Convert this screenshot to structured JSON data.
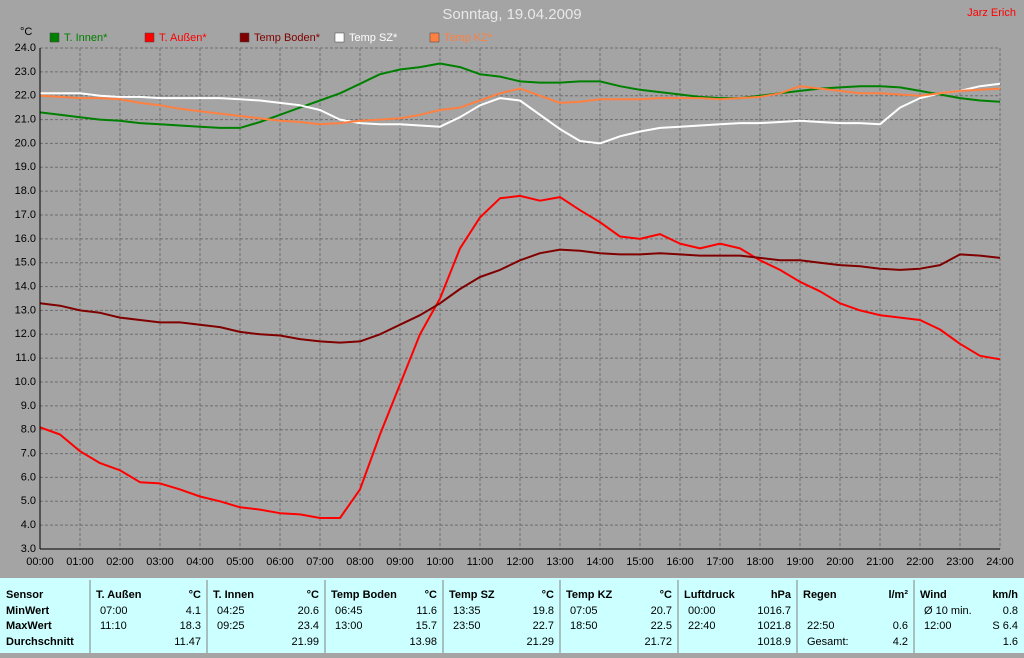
{
  "chart_data": {
    "type": "line",
    "title": "Sonntag, 19.04.2009",
    "author": "Jarz Erich",
    "y_label": "°C",
    "x": [
      0,
      0.5,
      1,
      1.5,
      2,
      2.5,
      3,
      3.5,
      4,
      4.5,
      5,
      5.5,
      6,
      6.5,
      7,
      7.5,
      8,
      8.5,
      9,
      9.5,
      10,
      10.5,
      11,
      11.5,
      12,
      12.5,
      13,
      13.5,
      14,
      14.5,
      15,
      15.5,
      16,
      16.5,
      17,
      17.5,
      18,
      18.5,
      19,
      19.5,
      20,
      20.5,
      21,
      21.5,
      22,
      22.5,
      23,
      23.5,
      24
    ],
    "series": [
      {
        "name": "T. Innen*",
        "color": "#008000",
        "values": [
          21.3,
          21.2,
          21.1,
          21.0,
          20.95,
          20.85,
          20.8,
          20.75,
          20.7,
          20.65,
          20.65,
          20.9,
          21.2,
          21.5,
          21.8,
          22.1,
          22.5,
          22.9,
          23.1,
          23.2,
          23.35,
          23.2,
          22.9,
          22.8,
          22.6,
          22.55,
          22.55,
          22.6,
          22.6,
          22.4,
          22.25,
          22.15,
          22.05,
          21.95,
          21.9,
          21.9,
          22.0,
          22.1,
          22.2,
          22.3,
          22.35,
          22.4,
          22.4,
          22.35,
          22.2,
          22.05,
          21.9,
          21.8,
          21.75
        ]
      },
      {
        "name": "T. Außen*",
        "color": "#ff0000",
        "values": [
          8.1,
          7.8,
          7.1,
          6.6,
          6.3,
          5.8,
          5.75,
          5.5,
          5.2,
          5.0,
          4.75,
          4.65,
          4.5,
          4.45,
          4.3,
          4.3,
          5.5,
          7.8,
          9.9,
          12.0,
          13.5,
          15.6,
          16.9,
          17.7,
          17.8,
          17.6,
          17.75,
          17.2,
          16.7,
          16.1,
          16.0,
          16.2,
          15.8,
          15.6,
          15.8,
          15.6,
          15.1,
          14.7,
          14.2,
          13.8,
          13.3,
          13.0,
          12.8,
          12.7,
          12.6,
          12.2,
          11.6,
          11.1,
          10.95
        ]
      },
      {
        "name": "Temp Boden*",
        "color": "#800000",
        "values": [
          13.3,
          13.2,
          13.0,
          12.9,
          12.7,
          12.6,
          12.5,
          12.5,
          12.4,
          12.3,
          12.1,
          12.0,
          11.95,
          11.8,
          11.7,
          11.65,
          11.7,
          12.0,
          12.4,
          12.8,
          13.3,
          13.9,
          14.4,
          14.7,
          15.1,
          15.4,
          15.55,
          15.5,
          15.4,
          15.35,
          15.35,
          15.4,
          15.35,
          15.3,
          15.3,
          15.3,
          15.2,
          15.1,
          15.1,
          15.0,
          14.9,
          14.85,
          14.75,
          14.7,
          14.75,
          14.9,
          15.35,
          15.3,
          15.2
        ]
      },
      {
        "name": "Temp SZ*",
        "color": "#ffffff",
        "values": [
          22.1,
          22.1,
          22.1,
          22.0,
          21.95,
          21.95,
          21.9,
          21.9,
          21.9,
          21.9,
          21.85,
          21.8,
          21.7,
          21.6,
          21.4,
          21.0,
          20.85,
          20.8,
          20.8,
          20.75,
          20.7,
          21.1,
          21.6,
          21.9,
          21.8,
          21.2,
          20.6,
          20.1,
          20.0,
          20.3,
          20.5,
          20.65,
          20.7,
          20.75,
          20.8,
          20.85,
          20.85,
          20.9,
          20.95,
          20.9,
          20.85,
          20.85,
          20.8,
          21.5,
          21.9,
          22.1,
          22.2,
          22.4,
          22.5
        ]
      },
      {
        "name": "Temp KZ*",
        "color": "#ff8040",
        "values": [
          22.0,
          21.95,
          21.9,
          21.9,
          21.85,
          21.7,
          21.6,
          21.45,
          21.35,
          21.25,
          21.15,
          21.05,
          20.95,
          20.9,
          20.8,
          20.85,
          20.95,
          21.0,
          21.05,
          21.2,
          21.4,
          21.5,
          21.8,
          22.1,
          22.3,
          22.0,
          21.7,
          21.75,
          21.85,
          21.85,
          21.85,
          21.9,
          21.9,
          21.9,
          21.85,
          21.9,
          21.95,
          22.1,
          22.4,
          22.3,
          22.2,
          22.1,
          22.1,
          22.05,
          22.0,
          22.1,
          22.2,
          22.25,
          22.3
        ]
      }
    ],
    "xlim": [
      0,
      24
    ],
    "xticks": [
      {
        "value": 0,
        "label": "00:00"
      },
      {
        "value": 1,
        "label": "01:00"
      },
      {
        "value": 2,
        "label": "02:00"
      },
      {
        "value": 3,
        "label": "03:00"
      },
      {
        "value": 4,
        "label": "04:00"
      },
      {
        "value": 5,
        "label": "05:00"
      },
      {
        "value": 6,
        "label": "06:00"
      },
      {
        "value": 7,
        "label": "07:00"
      },
      {
        "value": 8,
        "label": "08:00"
      },
      {
        "value": 9,
        "label": "09:00"
      },
      {
        "value": 10,
        "label": "10:00"
      },
      {
        "value": 11,
        "label": "11:00"
      },
      {
        "value": 12,
        "label": "12:00"
      },
      {
        "value": 13,
        "label": "13:00"
      },
      {
        "value": 14,
        "label": "14:00"
      },
      {
        "value": 15,
        "label": "15:00"
      },
      {
        "value": 16,
        "label": "16:00"
      },
      {
        "value": 17,
        "label": "17:00"
      },
      {
        "value": 18,
        "label": "18:00"
      },
      {
        "value": 19,
        "label": "19:00"
      },
      {
        "value": 20,
        "label": "20:00"
      },
      {
        "value": 21,
        "label": "21:00"
      },
      {
        "value": 22,
        "label": "22:00"
      },
      {
        "value": 23,
        "label": "23:00"
      },
      {
        "value": 24,
        "label": "24:00"
      }
    ],
    "ylim": [
      3,
      24
    ],
    "yticks": [
      {
        "value": 3,
        "label": "3.0"
      },
      {
        "value": 4,
        "label": "4.0"
      },
      {
        "value": 5,
        "label": "5.0"
      },
      {
        "value": 6,
        "label": "6.0"
      },
      {
        "value": 7,
        "label": "7.0"
      },
      {
        "value": 8,
        "label": "8.0"
      },
      {
        "value": 9,
        "label": "9.0"
      },
      {
        "value": 10,
        "label": "10.0"
      },
      {
        "value": 11,
        "label": "11.0"
      },
      {
        "value": 12,
        "label": "12.0"
      },
      {
        "value": 13,
        "label": "13.0"
      },
      {
        "value": 14,
        "label": "14.0"
      },
      {
        "value": 15,
        "label": "15.0"
      },
      {
        "value": 16,
        "label": "16.0"
      },
      {
        "value": 17,
        "label": "17.0"
      },
      {
        "value": 18,
        "label": "18.0"
      },
      {
        "value": 19,
        "label": "19.0"
      },
      {
        "value": 20,
        "label": "20.0"
      },
      {
        "value": 21,
        "label": "21.0"
      },
      {
        "value": 22,
        "label": "22.0"
      },
      {
        "value": 23,
        "label": "23.0"
      },
      {
        "value": 24,
        "label": "24.0"
      }
    ],
    "grid": true
  },
  "table": {
    "header": "Sensor",
    "row_labels": [
      "MinWert",
      "MaxWert",
      "Durchschnitt"
    ],
    "groups": [
      {
        "name": "T. Außen",
        "unit": "°C",
        "rows": [
          [
            "07:00",
            "4.1"
          ],
          [
            "11:10",
            "18.3"
          ],
          [
            null,
            "11.47"
          ]
        ]
      },
      {
        "name": "T. Innen",
        "unit": "°C",
        "rows": [
          [
            "04:25",
            "20.6"
          ],
          [
            "09:25",
            "23.4"
          ],
          [
            null,
            "21.99"
          ]
        ]
      },
      {
        "name": "Temp Boden",
        "unit": "°C",
        "rows": [
          [
            "06:45",
            "11.6"
          ],
          [
            "13:00",
            "15.7"
          ],
          [
            null,
            "13.98"
          ]
        ]
      },
      {
        "name": "Temp SZ",
        "unit": "°C",
        "rows": [
          [
            "13:35",
            "19.8"
          ],
          [
            "23:50",
            "22.7"
          ],
          [
            null,
            "21.29"
          ]
        ]
      },
      {
        "name": "Temp KZ",
        "unit": "°C",
        "rows": [
          [
            "07:05",
            "20.7"
          ],
          [
            "18:50",
            "22.5"
          ],
          [
            null,
            "21.72"
          ]
        ]
      },
      {
        "name": "Luftdruck",
        "unit": "hPa",
        "rows": [
          [
            "00:00",
            "1016.7"
          ],
          [
            "22:40",
            "1021.8"
          ],
          [
            null,
            "1018.9"
          ]
        ]
      },
      {
        "name": "Regen",
        "unit": "l/m²",
        "rows": [
          [
            null,
            null
          ],
          [
            "22:50",
            "0.6"
          ],
          [
            "Gesamt:",
            "4.2"
          ]
        ]
      },
      {
        "name": "Wind",
        "unit": "km/h",
        "rows": [
          [
            "Ø 10 min.",
            "0.8"
          ],
          [
            "12:00",
            "S 6.4"
          ],
          [
            null,
            "1.6"
          ]
        ]
      }
    ]
  }
}
